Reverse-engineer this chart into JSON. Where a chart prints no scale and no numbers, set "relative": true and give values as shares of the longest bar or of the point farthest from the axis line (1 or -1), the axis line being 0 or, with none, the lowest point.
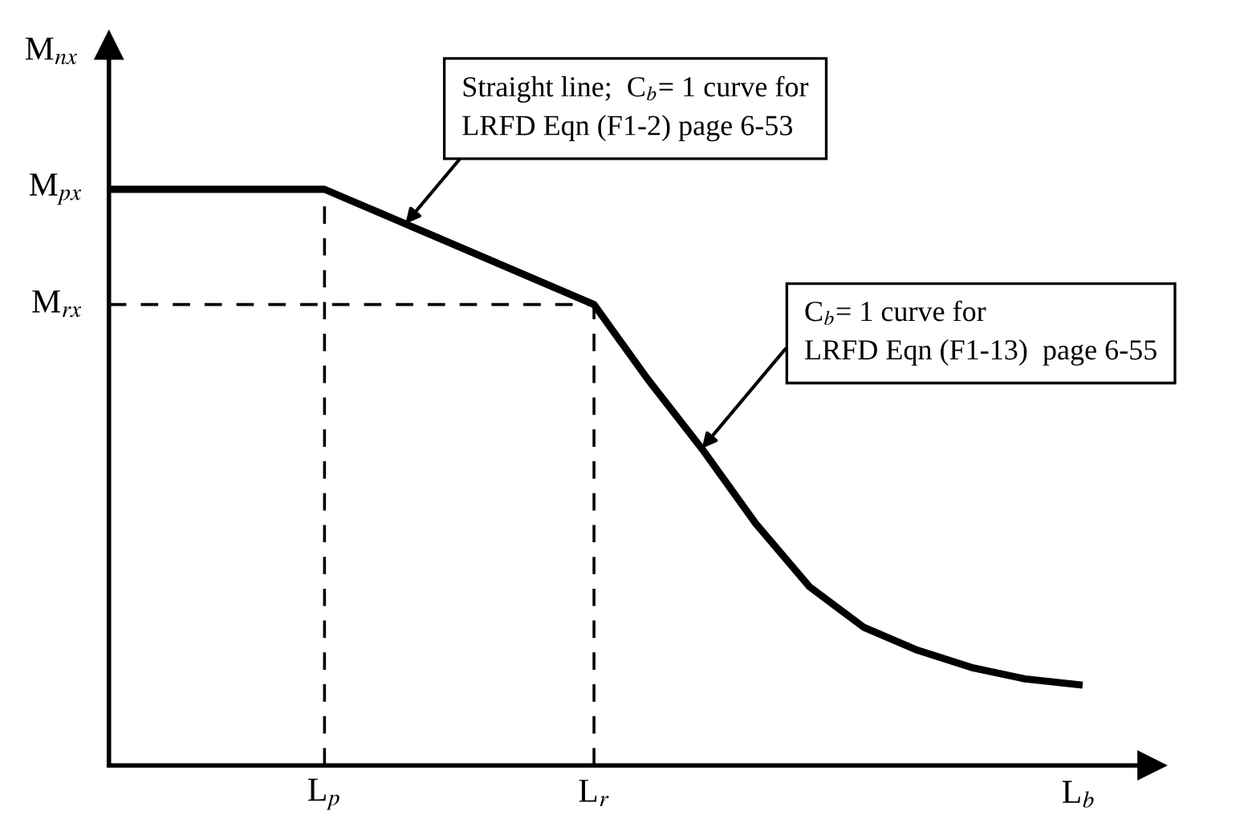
{
  "chart_data": {
    "type": "line",
    "relative": true,
    "xlabel": "L$_{b}$",
    "ylabel": "M$_{nx}$",
    "categories": [
      null,
      null,
      null,
      null,
      "L$_{p}$",
      null,
      null,
      null,
      null,
      "L$_{r}$",
      null,
      null,
      null,
      null,
      null,
      null,
      null,
      null,
      null
    ],
    "series": [
      {
        "color": "#000000",
        "values": [
          1,
          1,
          1,
          1,
          1,
          0.96,
          0.92,
          0.88,
          0.84,
          0.8,
          0.67,
          0.55,
          0.42,
          0.31,
          0.24,
          0.2,
          0.17,
          0.15,
          0.14
        ]
      }
    ],
    "ref_lines": [
      {
        "axis": "x",
        "value": "L$_{p}$",
        "line_style": "dashed"
      },
      {
        "axis": "x",
        "value": "L$_{r}$",
        "line_style": "dashed"
      },
      {
        "axis": "y",
        "value": 0.8,
        "label": "M$_{rx}$",
        "line_style": "dashed"
      }
    ],
    "annotations": [
      "M$_{px}$",
      "Straight line;  C$_{b}$= 1 curve for\nLRFD Eqn (F1-2) page 6-53",
      "C$_{b}$= 1 curve for\nLRFD Eqn (F1-13)  page 6-55"
    ],
    "marker": "none",
    "line_style": "solid"
  }
}
